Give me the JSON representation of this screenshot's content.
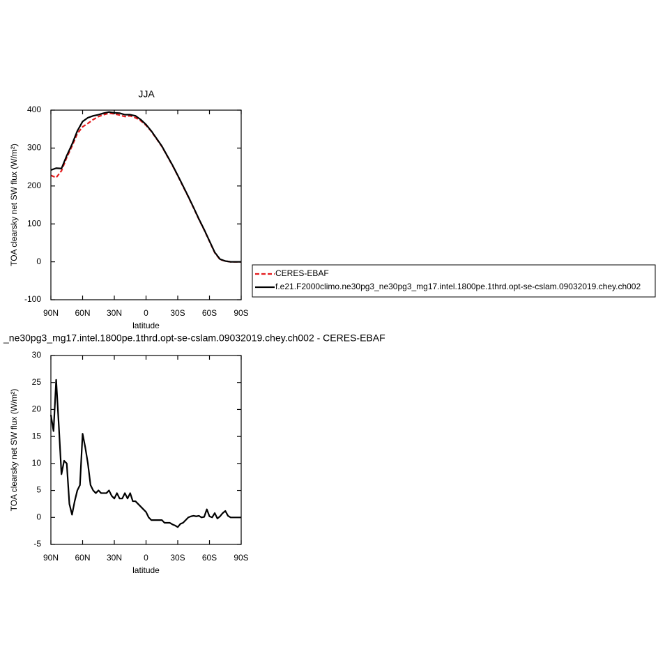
{
  "chart_data": [
    {
      "type": "line",
      "title": "JJA",
      "xlabel": "latitude",
      "ylabel": "TOA clearsky net SW flux (W/m²)",
      "x": [
        90,
        85,
        80,
        75,
        70,
        65,
        60,
        55,
        50,
        45,
        40,
        35,
        30,
        25,
        20,
        15,
        10,
        5,
        0,
        -5,
        -10,
        -15,
        -20,
        -25,
        -30,
        -35,
        -40,
        -45,
        -50,
        -55,
        -60,
        -65,
        -70,
        -75,
        -80,
        -85,
        -90
      ],
      "series": [
        {
          "name": "CERES-EBAF",
          "color": "#e41a1c",
          "dashed": true,
          "values": [
            228,
            222,
            240,
            275,
            305,
            338,
            356,
            365,
            375,
            383,
            388,
            392,
            390,
            387,
            383,
            385,
            380,
            372,
            360,
            344,
            324,
            304,
            279,
            254,
            227,
            199,
            171,
            142,
            112,
            84,
            54,
            24,
            6,
            2,
            0,
            0,
            0
          ]
        },
        {
          "name": "f.e21.F2000climo.ne30pg3_ne30pg3_mg17.intel.1800pe.1thrd.opt-se-cslam.09032019.chey.ch002",
          "color": "#000000",
          "dashed": false,
          "values": [
            242,
            247,
            246,
            280,
            310,
            345,
            370,
            380,
            385,
            388,
            392,
            395,
            393,
            392,
            388,
            388,
            385,
            375,
            362,
            345,
            325,
            305,
            280,
            255,
            228,
            200,
            172,
            143,
            113,
            85,
            55,
            25,
            7,
            2,
            0,
            0,
            0
          ]
        }
      ],
      "xlim": [
        90,
        -90
      ],
      "xticks": [
        {
          "value": 90,
          "label": "90N"
        },
        {
          "value": 60,
          "label": "60N"
        },
        {
          "value": 30,
          "label": "30N"
        },
        0,
        {
          "value": -30,
          "label": "30S"
        },
        {
          "value": -60,
          "label": "60S"
        },
        {
          "value": -90,
          "label": "90S"
        }
      ],
      "ylim": [
        -100,
        400
      ],
      "yticks": [
        -100,
        0,
        100,
        200,
        300,
        400
      ]
    },
    {
      "type": "line",
      "title": "_ne30pg3_mg17.intel.1800pe.1thrd.opt-se-cslam.09032019.chey.ch002 - CERES-EBAF",
      "xlabel": "latitude",
      "ylabel": "TOA clearsky net SW flux (W/m²)",
      "x": [
        90,
        87.5,
        85,
        82.5,
        80,
        77.5,
        75,
        72.5,
        70,
        67.5,
        65,
        62.5,
        60,
        57.5,
        55,
        52.5,
        50,
        47.5,
        45,
        42.5,
        40,
        37.5,
        35,
        32.5,
        30,
        27.5,
        25,
        22.5,
        20,
        17.5,
        15,
        12.5,
        10,
        7.5,
        5,
        2.5,
        0,
        -2.5,
        -5,
        -7.5,
        -10,
        -12.5,
        -15,
        -17.5,
        -20,
        -22.5,
        -25,
        -27.5,
        -30,
        -32.5,
        -35,
        -37.5,
        -40,
        -42.5,
        -45,
        -47.5,
        -50,
        -52.5,
        -55,
        -57.5,
        -60,
        -62.5,
        -65,
        -67.5,
        -70,
        -72.5,
        -75,
        -77.5,
        -80,
        -82.5,
        -85,
        -87.5,
        -90
      ],
      "series": [
        {
          "color": "#000000",
          "dashed": false,
          "values": [
            19,
            16,
            25.5,
            17,
            8,
            10.5,
            10,
            2.5,
            0.5,
            3,
            5,
            6,
            15.5,
            13,
            10,
            6,
            5,
            4.5,
            5,
            4.5,
            4.5,
            4.5,
            5,
            4,
            3.5,
            4.5,
            3.5,
            3.5,
            4.5,
            3.5,
            4.5,
            3,
            3,
            2.5,
            2,
            1.5,
            1,
            0,
            -0.5,
            -0.5,
            -0.5,
            -0.5,
            -0.5,
            -1,
            -1,
            -1,
            -1.3,
            -1.5,
            -1.8,
            -1.2,
            -1,
            -0.5,
            0,
            0.2,
            0.3,
            0.2,
            0.3,
            0,
            0.1,
            1.5,
            0.2,
            0,
            0.8,
            -0.2,
            0.2,
            0.8,
            1.2,
            0.3,
            0,
            0,
            0,
            0,
            0
          ]
        }
      ],
      "xlim": [
        90,
        -90
      ],
      "xticks": [
        {
          "value": 90,
          "label": "90N"
        },
        {
          "value": 60,
          "label": "60N"
        },
        {
          "value": 30,
          "label": "30N"
        },
        0,
        {
          "value": -30,
          "label": "30S"
        },
        {
          "value": -60,
          "label": "60S"
        },
        {
          "value": -90,
          "label": "90S"
        }
      ],
      "ylim": [
        -5,
        30
      ],
      "yticks": [
        -5,
        0,
        5,
        10,
        15,
        20,
        25,
        30
      ]
    }
  ]
}
